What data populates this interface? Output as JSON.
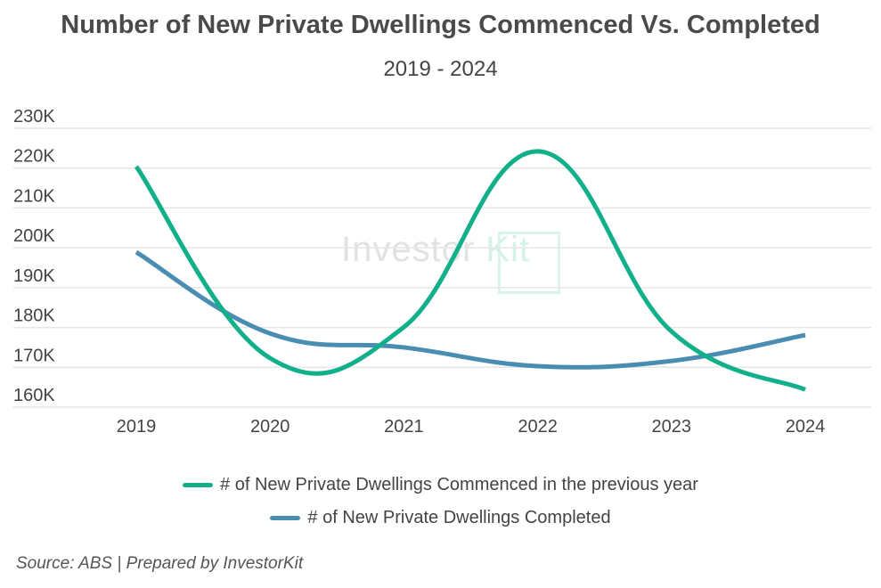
{
  "chart_data": {
    "type": "line",
    "title": "Number of New Private Dwellings Commenced Vs. Completed",
    "subtitle": "2019 - 2024",
    "categories": [
      "2019",
      "2020",
      "2021",
      "2022",
      "2023",
      "2024"
    ],
    "series": [
      {
        "name": "# of New Private Dwellings Commenced in the previous year",
        "color": "#12b08a",
        "values": [
          220400,
          172300,
          180100,
          224200,
          179000,
          164400
        ]
      },
      {
        "name": "# of New Private Dwellings Completed",
        "color": "#4a8db3",
        "values": [
          198900,
          178500,
          175000,
          170300,
          171600,
          178100
        ]
      }
    ],
    "ylim": [
      160000,
      230000
    ],
    "yticks": [
      "160K",
      "170K",
      "180K",
      "190K",
      "200K",
      "210K",
      "220K",
      "230K"
    ],
    "grid": true,
    "smooth": true,
    "legend_position": "bottom"
  },
  "watermark": {
    "text_a": "Investor",
    "text_b": "Kit"
  },
  "source": "Source: ABS | Prepared by InvestorKit"
}
